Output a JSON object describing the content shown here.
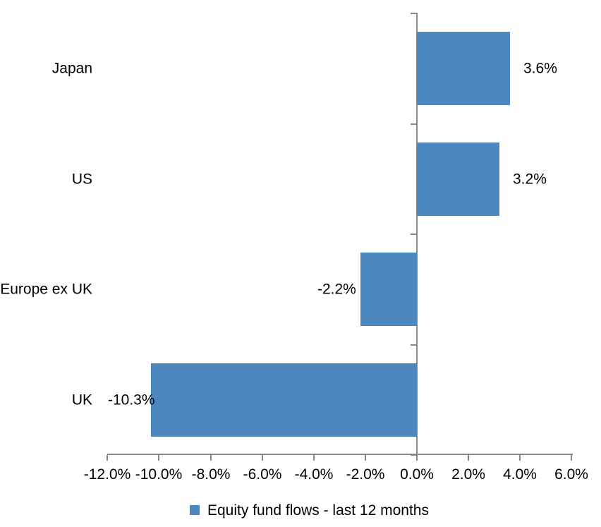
{
  "chart_data": {
    "type": "bar",
    "orientation": "horizontal",
    "title": "",
    "categories": [
      "Japan",
      "US",
      "Europe ex UK",
      "UK"
    ],
    "values": [
      3.6,
      3.2,
      -2.2,
      -10.3
    ],
    "value_labels": [
      "3.6%",
      "3.2%",
      "-2.2%",
      "-10.3%"
    ],
    "series_name": "Equity fund flows - last 12 months",
    "xlim": [
      -12,
      6
    ],
    "x_tick_step": 2,
    "x_tick_labels": [
      "-12.0%",
      "-10.0%",
      "-8.0%",
      "-6.0%",
      "-4.0%",
      "-2.0%",
      "0.0%",
      "2.0%",
      "4.0%",
      "6.0%"
    ],
    "grid": false,
    "legend_position": "bottom-center",
    "colors": {
      "bar": "#4C87BE",
      "axis": "#898989",
      "text": "#000000",
      "background": "#FFFFFF"
    }
  },
  "legend": {
    "label": "Equity fund flows - last 12 months"
  }
}
